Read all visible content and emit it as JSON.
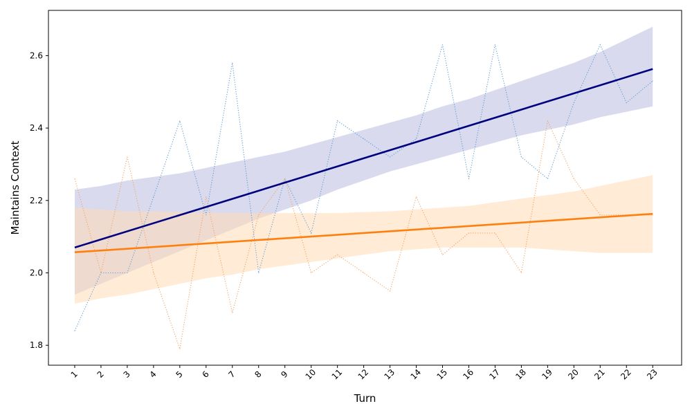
{
  "chart_data": {
    "type": "line",
    "title": "",
    "xlabel": "Turn",
    "ylabel": "Maintains Context",
    "x": [
      1,
      2,
      3,
      4,
      5,
      6,
      7,
      8,
      9,
      10,
      11,
      12,
      13,
      14,
      15,
      16,
      17,
      18,
      19,
      20,
      21,
      22,
      23
    ],
    "xlim": [
      -0.0,
      24.1
    ],
    "ylim": [
      1.745,
      2.725
    ],
    "yticks": [
      1.8,
      2.0,
      2.2,
      2.4,
      2.6
    ],
    "ytick_labels": [
      "1.8",
      "2.0",
      "2.2",
      "2.4",
      "2.6"
    ],
    "grid": false,
    "series": [
      {
        "name": "series-blue",
        "raw_color": "#5b9bd5",
        "fit_color": "#00007f",
        "band_color": "#9fa3d1",
        "values": [
          1.84,
          2.0,
          2.0,
          2.21,
          2.42,
          2.16,
          2.58,
          2.0,
          2.26,
          2.11,
          2.42,
          2.37,
          2.32,
          2.37,
          2.63,
          2.26,
          2.63,
          2.32,
          2.26,
          2.47,
          2.63,
          2.47,
          2.53
        ],
        "fit": {
          "start": 2.07,
          "end": 2.563
        },
        "band_lower": [
          1.94,
          1.97,
          2.0,
          2.03,
          2.06,
          2.09,
          2.12,
          2.15,
          2.175,
          2.2,
          2.23,
          2.255,
          2.28,
          2.3,
          2.32,
          2.34,
          2.36,
          2.38,
          2.395,
          2.41,
          2.43,
          2.445,
          2.46
        ],
        "band_upper": [
          2.23,
          2.24,
          2.255,
          2.265,
          2.275,
          2.29,
          2.305,
          2.32,
          2.335,
          2.355,
          2.375,
          2.395,
          2.415,
          2.435,
          2.46,
          2.48,
          2.505,
          2.53,
          2.555,
          2.58,
          2.61,
          2.645,
          2.68
        ]
      },
      {
        "name": "series-orange",
        "raw_color": "#f4a261",
        "fit_color": "#ff7f0e",
        "band_color": "#ffdbb5",
        "values": [
          2.26,
          2.0,
          2.32,
          2.0,
          1.79,
          2.21,
          1.89,
          2.16,
          2.26,
          2.0,
          2.05,
          2.0,
          1.95,
          2.21,
          2.05,
          2.11,
          2.11,
          2.0,
          2.42,
          2.26,
          2.16,
          2.16,
          2.16
        ],
        "fit": {
          "start": 2.057,
          "end": 2.163
        },
        "band_lower": [
          1.915,
          1.93,
          1.94,
          1.955,
          1.97,
          1.985,
          1.995,
          2.01,
          2.02,
          2.03,
          2.04,
          2.05,
          2.06,
          2.065,
          2.07,
          2.07,
          2.07,
          2.07,
          2.065,
          2.06,
          2.055,
          2.055,
          2.055
        ],
        "band_upper": [
          2.18,
          2.175,
          2.17,
          2.17,
          2.168,
          2.166,
          2.165,
          2.165,
          2.165,
          2.165,
          2.165,
          2.168,
          2.17,
          2.175,
          2.18,
          2.185,
          2.195,
          2.205,
          2.215,
          2.225,
          2.24,
          2.255,
          2.27
        ]
      }
    ]
  }
}
